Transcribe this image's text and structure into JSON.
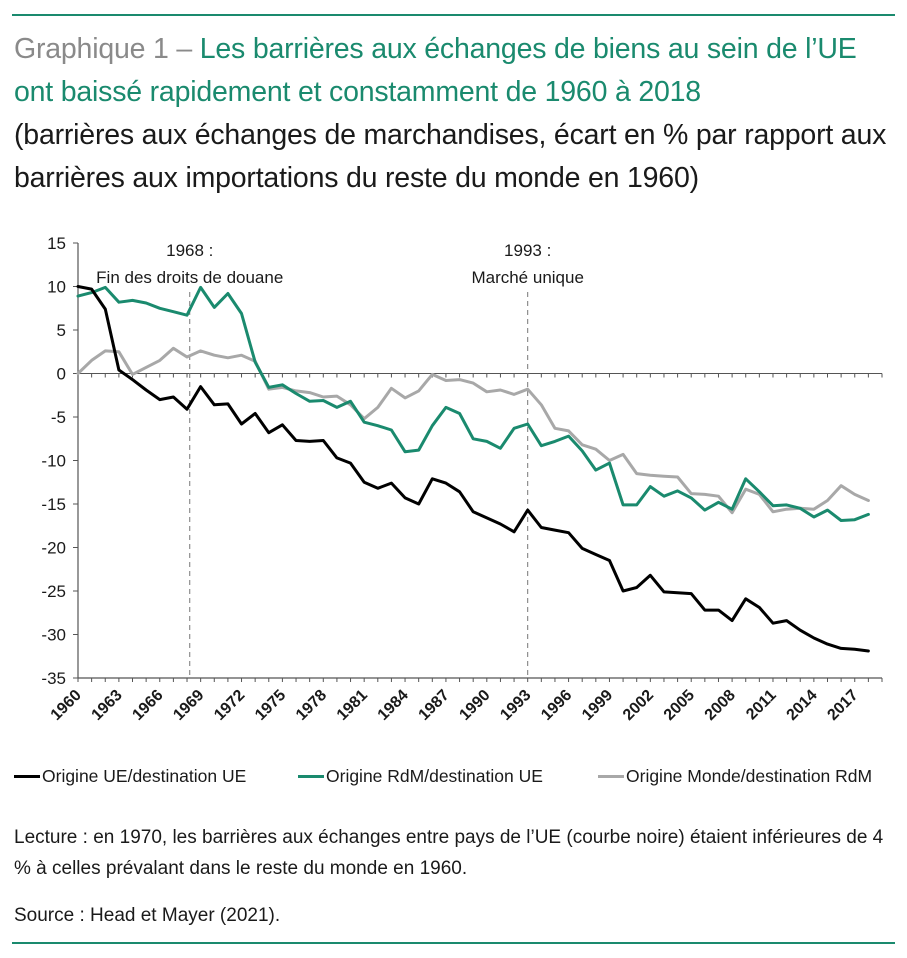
{
  "header": {
    "lead": "Graphique 1 – ",
    "title": "Les barrières aux échanges de biens au sein de l’UE ont baissé rapidement et constamment de 1960 à 2018",
    "subtitle": "(barrières aux échanges de marchandises, écart en % par rapport aux barrières aux importations du reste du monde en 1960)"
  },
  "colors": {
    "accent": "#1a8a6e",
    "series_ue": "#000000",
    "series_rdm": "#1a8a6e",
    "series_monde": "#a8a8a8"
  },
  "chart_data": {
    "type": "line",
    "x": [
      1960,
      1961,
      1962,
      1963,
      1964,
      1965,
      1966,
      1967,
      1968,
      1969,
      1970,
      1971,
      1972,
      1973,
      1974,
      1975,
      1976,
      1977,
      1978,
      1979,
      1980,
      1981,
      1982,
      1983,
      1984,
      1985,
      1986,
      1987,
      1988,
      1989,
      1990,
      1991,
      1992,
      1993,
      1994,
      1995,
      1996,
      1997,
      1998,
      1999,
      2000,
      2001,
      2002,
      2003,
      2004,
      2005,
      2006,
      2007,
      2008,
      2009,
      2010,
      2011,
      2012,
      2013,
      2014,
      2015,
      2016,
      2017,
      2018
    ],
    "xticks": [
      "1960",
      "1963",
      "1966",
      "1969",
      "1972",
      "1975",
      "1978",
      "1981",
      "1984",
      "1987",
      "1990",
      "1993",
      "1996",
      "1999",
      "2002",
      "2005",
      "2008",
      "2011",
      "2014",
      "2017"
    ],
    "ylim": [
      -35,
      15
    ],
    "yticks": [
      15,
      10,
      5,
      0,
      -5,
      -10,
      -15,
      -20,
      -25,
      -30,
      -35
    ],
    "series": [
      {
        "name": "Origine UE/destination UE",
        "color": "#000000",
        "values": [
          10.0,
          9.7,
          7.4,
          0.4,
          -0.7,
          -1.9,
          -3.0,
          -2.7,
          -4.1,
          -1.5,
          -3.6,
          -3.5,
          -5.8,
          -4.6,
          -6.8,
          -5.9,
          -7.7,
          -7.8,
          -7.7,
          -9.7,
          -10.3,
          -12.5,
          -13.2,
          -12.6,
          -14.3,
          -15.0,
          -12.1,
          -12.6,
          -13.6,
          -15.9,
          -16.6,
          -17.3,
          -18.2,
          -15.7,
          -17.7,
          -18.0,
          -18.3,
          -20.1,
          -20.8,
          -21.5,
          -25.0,
          -24.6,
          -23.2,
          -25.1,
          -25.2,
          -25.3,
          -27.2,
          -27.2,
          -28.4,
          -25.9,
          -26.9,
          -28.7,
          -28.4,
          -29.5,
          -30.4,
          -31.1,
          -31.6,
          -31.7,
          -31.9
        ]
      },
      {
        "name": "Origine RdM/destination UE",
        "color": "#1a8a6e",
        "values": [
          8.9,
          9.3,
          9.9,
          8.2,
          8.4,
          8.1,
          7.5,
          7.1,
          6.7,
          9.9,
          7.6,
          9.2,
          6.9,
          1.3,
          -1.6,
          -1.3,
          -2.3,
          -3.2,
          -3.1,
          -3.9,
          -3.2,
          -5.6,
          -6.0,
          -6.5,
          -9.0,
          -8.8,
          -6.0,
          -3.9,
          -4.6,
          -7.5,
          -7.8,
          -8.6,
          -6.3,
          -5.8,
          -8.3,
          -7.8,
          -7.2,
          -8.9,
          -11.1,
          -10.3,
          -15.1,
          -15.1,
          -13.0,
          -14.1,
          -13.5,
          -14.3,
          -15.7,
          -14.8,
          -15.6,
          -12.1,
          -13.6,
          -15.2,
          -15.1,
          -15.5,
          -16.5,
          -15.7,
          -16.9,
          -16.8,
          -16.2
        ]
      },
      {
        "name": "Origine Monde/destination RdM",
        "color": "#a8a8a8",
        "values": [
          0.0,
          1.5,
          2.6,
          2.5,
          -0.1,
          0.7,
          1.5,
          2.9,
          1.9,
          2.6,
          2.1,
          1.8,
          2.1,
          1.4,
          -1.8,
          -1.6,
          -2.0,
          -2.2,
          -2.7,
          -2.6,
          -3.6,
          -5.2,
          -3.9,
          -1.7,
          -2.8,
          -2.0,
          -0.1,
          -0.8,
          -0.7,
          -1.1,
          -2.1,
          -1.9,
          -2.4,
          -1.8,
          -3.6,
          -6.3,
          -6.6,
          -8.2,
          -8.7,
          -10.0,
          -9.3,
          -11.5,
          -11.7,
          -11.8,
          -11.9,
          -13.8,
          -13.9,
          -14.1,
          -16.0,
          -13.3,
          -13.9,
          -15.9,
          -15.6,
          -15.5,
          -15.6,
          -14.6,
          -12.9,
          -13.9,
          -14.6
        ]
      }
    ],
    "annotations": [
      {
        "x": 1968.2,
        "label_line1": "1968 :",
        "label_line2": "Fin des droits de douane"
      },
      {
        "x": 1993,
        "label_line1": "1993 :",
        "label_line2": "Marché unique"
      }
    ],
    "grid": false,
    "legend_position": "bottom"
  },
  "legend": [
    {
      "label": "Origine UE/destination UE",
      "color": "#000000"
    },
    {
      "label": "Origine RdM/destination UE",
      "color": "#1a8a6e"
    },
    {
      "label": "Origine Monde/destination RdM",
      "color": "#a8a8a8"
    }
  ],
  "notes": {
    "reading": "Lecture : en 1970, les barrières aux échanges entre pays de l’UE (courbe noire) étaient inférieures de 4 % à celles prévalant dans le reste du monde en 1960.",
    "source": "Source : Head et Mayer (2021)."
  }
}
